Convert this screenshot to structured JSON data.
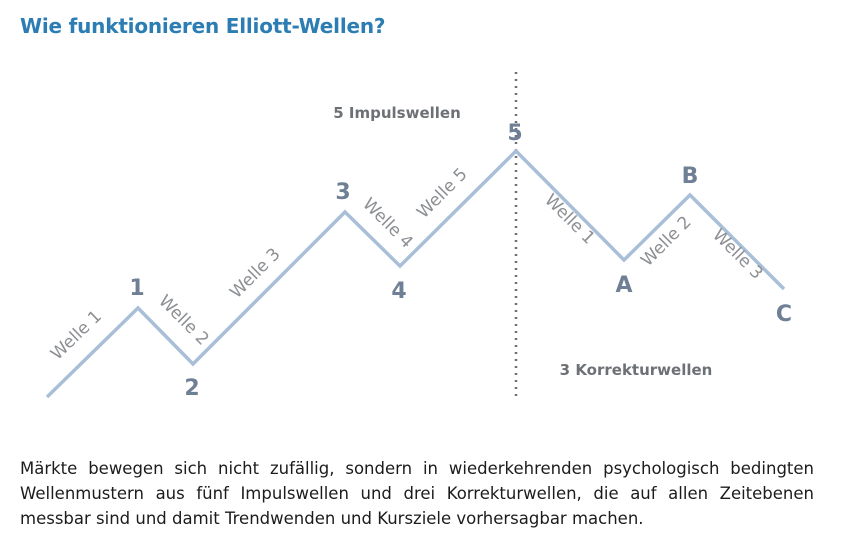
{
  "title": "Wie funktionieren Elliott-Wellen?",
  "impulse_heading": "5 Impulswellen",
  "correction_heading": "3 Korrekturwellen",
  "points": {
    "p1": "1",
    "p2": "2",
    "p3": "3",
    "p4": "4",
    "p5": "5",
    "pA": "A",
    "pB": "B",
    "pC": "C"
  },
  "waves": {
    "w1": "Welle 1",
    "w2": "Welle 2",
    "w3": "Welle 3",
    "w4": "Welle 4",
    "w5": "Welle 5",
    "c1": "Welle 1",
    "c2": "Welle 2",
    "c3": "Welle 3"
  },
  "description": "Märkte bewegen sich nicht zufällig, sondern in wiederkehrenden psychologisch bedingten Wellenmustern aus fünf Impulswellen und drei Korrekturwellen, die auf allen Zeitebenen messbar sind und damit Trendwenden und Kursziele vorhersagbar machen.",
  "colors": {
    "title": "#2b7db3",
    "line": "#a9bfd8",
    "point_labels": "#6f7f95",
    "wave_labels": "#8c8f93",
    "divider": "#6b6f75"
  }
}
